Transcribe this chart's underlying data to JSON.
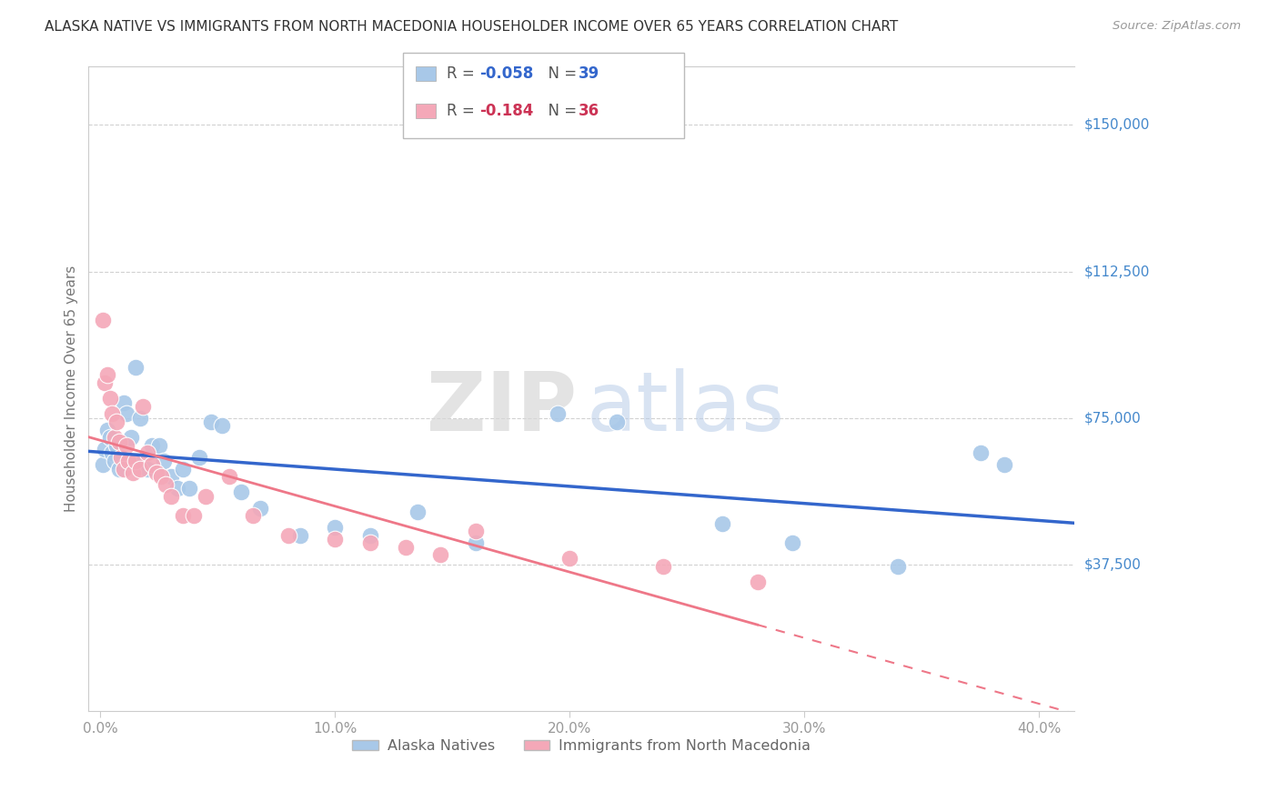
{
  "title": "ALASKA NATIVE VS IMMIGRANTS FROM NORTH MACEDONIA HOUSEHOLDER INCOME OVER 65 YEARS CORRELATION CHART",
  "source": "Source: ZipAtlas.com",
  "ylabel": "Householder Income Over 65 years",
  "xlabel_ticks": [
    "0.0%",
    "10.0%",
    "20.0%",
    "30.0%",
    "40.0%"
  ],
  "xlabel_vals": [
    0.0,
    0.1,
    0.2,
    0.3,
    0.4
  ],
  "ytick_labels": [
    "$37,500",
    "$75,000",
    "$112,500",
    "$150,000"
  ],
  "ytick_vals": [
    37500,
    75000,
    112500,
    150000
  ],
  "ylim": [
    0,
    165000
  ],
  "xlim": [
    -0.005,
    0.415
  ],
  "legend_label_blue": "Alaska Natives",
  "legend_label_pink": "Immigrants from North Macedonia",
  "R_blue": -0.058,
  "N_blue": 39,
  "R_pink": -0.184,
  "N_pink": 36,
  "blue_color": "#a8c8e8",
  "pink_color": "#f4a8b8",
  "line_blue_color": "#3366cc",
  "line_pink_color": "#ee7788",
  "blue_x": [
    0.001,
    0.002,
    0.003,
    0.004,
    0.005,
    0.006,
    0.007,
    0.008,
    0.01,
    0.011,
    0.013,
    0.015,
    0.017,
    0.018,
    0.02,
    0.022,
    0.025,
    0.027,
    0.03,
    0.033,
    0.035,
    0.038,
    0.042,
    0.047,
    0.052,
    0.06,
    0.068,
    0.085,
    0.1,
    0.115,
    0.135,
    0.16,
    0.195,
    0.22,
    0.265,
    0.295,
    0.34,
    0.375,
    0.385
  ],
  "blue_y": [
    63000,
    67000,
    72000,
    70000,
    66000,
    64000,
    68000,
    62000,
    79000,
    76000,
    70000,
    88000,
    75000,
    64000,
    62000,
    68000,
    68000,
    64000,
    60000,
    57000,
    62000,
    57000,
    65000,
    74000,
    73000,
    56000,
    52000,
    45000,
    47000,
    45000,
    51000,
    43000,
    76000,
    74000,
    48000,
    43000,
    37000,
    66000,
    63000
  ],
  "pink_x": [
    0.001,
    0.002,
    0.003,
    0.004,
    0.005,
    0.006,
    0.007,
    0.008,
    0.009,
    0.01,
    0.011,
    0.012,
    0.014,
    0.015,
    0.017,
    0.018,
    0.02,
    0.022,
    0.024,
    0.026,
    0.028,
    0.03,
    0.035,
    0.04,
    0.045,
    0.055,
    0.065,
    0.08,
    0.1,
    0.115,
    0.13,
    0.145,
    0.16,
    0.2,
    0.24,
    0.28
  ],
  "pink_y": [
    100000,
    84000,
    86000,
    80000,
    76000,
    70000,
    74000,
    69000,
    65000,
    62000,
    68000,
    64000,
    61000,
    64000,
    62000,
    78000,
    66000,
    63000,
    61000,
    60000,
    58000,
    55000,
    50000,
    50000,
    55000,
    60000,
    50000,
    45000,
    44000,
    43000,
    42000,
    40000,
    46000,
    39000,
    37000,
    33000
  ]
}
